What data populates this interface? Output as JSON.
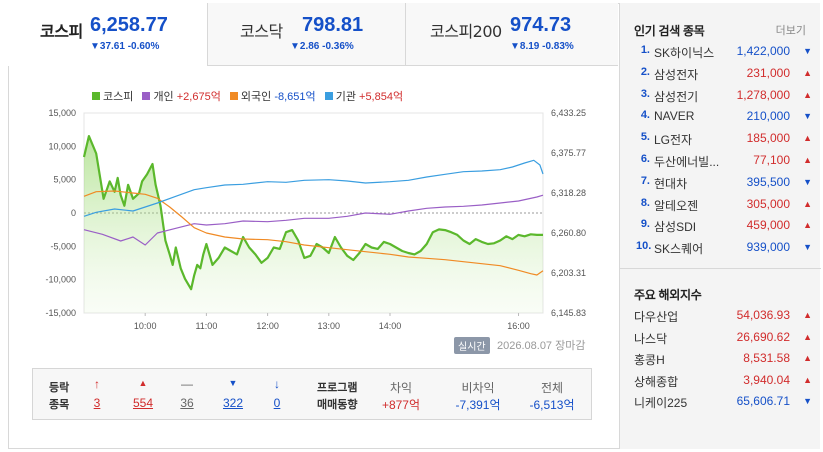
{
  "tabs": [
    {
      "name": "코스피",
      "value": "6,258.77",
      "change": "▼37.61 -0.60%"
    },
    {
      "name": "코스닥",
      "value": "798.81",
      "change": "▼2.86 -0.36%"
    },
    {
      "name": "코스피200",
      "value": "974.73",
      "change": "▼8.19 -0.83%"
    }
  ],
  "legend": {
    "kospi": {
      "label": "코스피",
      "color": "#5bb82c"
    },
    "individual": {
      "label": "개인",
      "value": "+2,675억",
      "color": "#9a5fc6",
      "value_color": "#d12c2c"
    },
    "foreign": {
      "label": "외국인",
      "value": "-8,651억",
      "color": "#f08a24",
      "value_color": "#1550c8"
    },
    "institution": {
      "label": "기관",
      "value": "+5,854억",
      "color": "#3a9ee0",
      "value_color": "#d12c2c"
    }
  },
  "chart_data": {
    "type": "line",
    "x_ticks": [
      "10:00",
      "11:00",
      "12:00",
      "13:00",
      "14:00",
      "16:00"
    ],
    "left_ticks": [
      "15,000",
      "10,000",
      "5,000",
      "0",
      "-5,000",
      "-10,000",
      "-15,000"
    ],
    "right_ticks": [
      "6,433.25",
      "6,375.77",
      "6,318.28",
      "6,260.80",
      "6,203.31",
      "6,145.83"
    ],
    "left_ylim": [
      -15000,
      15000
    ],
    "right_ylim": [
      6145.83,
      6433.25
    ],
    "x_range": [
      9,
      16.5
    ],
    "series": [
      {
        "name": "코스피",
        "axis": "right",
        "color": "#5bb82c",
        "fill": true,
        "x": [
          9.0,
          9.08,
          9.2,
          9.32,
          9.38,
          9.42,
          9.5,
          9.55,
          9.6,
          9.66,
          9.72,
          9.8,
          9.9,
          9.95,
          10.03,
          10.12,
          10.17,
          10.25,
          10.33,
          10.4,
          10.45,
          10.5,
          10.58,
          10.65,
          10.75,
          10.8,
          10.85,
          10.9,
          10.95,
          11.0,
          11.1,
          11.2,
          11.3,
          11.4,
          11.5,
          11.6,
          11.7,
          11.8,
          11.9,
          12.0,
          12.1,
          12.2,
          12.3,
          12.4,
          12.5,
          12.6,
          12.7,
          12.8,
          12.9,
          13.0,
          13.1,
          13.2,
          13.3,
          13.4,
          13.5,
          13.6,
          13.7,
          13.8,
          13.9,
          14.0,
          14.1,
          14.2,
          14.3,
          14.4,
          14.5,
          14.6,
          14.7,
          14.8,
          14.9,
          15.0,
          15.1,
          15.2,
          15.3,
          15.4,
          15.5,
          15.6,
          15.7,
          15.8,
          15.9,
          16.0,
          16.1,
          16.2,
          16.3,
          16.4,
          16.5
        ],
        "y": [
          6370,
          6400,
          6375,
          6310,
          6325,
          6335,
          6320,
          6340,
          6315,
          6300,
          6330,
          6310,
          6318,
          6335,
          6345,
          6360,
          6330,
          6300,
          6250,
          6230,
          6215,
          6240,
          6210,
          6195,
          6180,
          6200,
          6215,
          6210,
          6230,
          6245,
          6215,
          6225,
          6240,
          6235,
          6230,
          6255,
          6240,
          6230,
          6218,
          6225,
          6240,
          6238,
          6262,
          6265,
          6250,
          6225,
          6228,
          6245,
          6240,
          6232,
          6255,
          6240,
          6228,
          6222,
          6232,
          6245,
          6240,
          6238,
          6248,
          6245,
          6240,
          6235,
          6232,
          6230,
          6235,
          6245,
          6262,
          6266,
          6265,
          6262,
          6258,
          6250,
          6245,
          6252,
          6248,
          6245,
          6246,
          6250,
          6256,
          6252,
          6258,
          6256,
          6259,
          6258,
          6258
        ]
      },
      {
        "name": "개인",
        "axis": "left",
        "color": "#9a5fc6",
        "x": [
          9.0,
          9.3,
          9.6,
          9.8,
          10.0,
          10.2,
          10.5,
          10.8,
          11.0,
          11.3,
          11.6,
          12.0,
          12.3,
          12.6,
          13.0,
          13.3,
          13.6,
          14.0,
          14.3,
          14.6,
          14.9,
          15.2,
          15.5,
          15.8,
          16.1,
          16.4,
          16.5
        ],
        "y": [
          -2500,
          -3200,
          -4200,
          -3600,
          -4800,
          -3000,
          -2300,
          -1600,
          -1800,
          -1600,
          -1200,
          -1300,
          -1100,
          -800,
          -800,
          -500,
          0,
          -200,
          300,
          700,
          900,
          1000,
          1200,
          1500,
          1800,
          2400,
          2675
        ]
      },
      {
        "name": "외국인",
        "axis": "left",
        "color": "#f08a24",
        "x": [
          9.0,
          9.2,
          9.5,
          9.8,
          10.0,
          10.2,
          10.4,
          10.6,
          10.8,
          11.0,
          11.3,
          11.6,
          12.0,
          12.3,
          12.6,
          13.0,
          13.3,
          13.6,
          14.0,
          14.3,
          14.6,
          14.9,
          15.2,
          15.5,
          15.8,
          16.1,
          16.3,
          16.4,
          16.5
        ],
        "y": [
          2500,
          3200,
          3300,
          3000,
          2800,
          2200,
          900,
          -600,
          -2200,
          -3000,
          -3600,
          -3900,
          -4000,
          -4300,
          -4800,
          -5200,
          -5500,
          -5800,
          -6200,
          -6600,
          -6800,
          -7000,
          -7300,
          -7600,
          -7900,
          -8600,
          -9100,
          -9300,
          -8651
        ]
      },
      {
        "name": "기관",
        "axis": "left",
        "color": "#3a9ee0",
        "x": [
          9.0,
          9.2,
          9.5,
          9.8,
          10.0,
          10.2,
          10.5,
          10.8,
          11.0,
          11.3,
          11.6,
          12.0,
          12.3,
          12.6,
          13.0,
          13.3,
          13.6,
          14.0,
          14.3,
          14.6,
          14.9,
          15.2,
          15.5,
          15.8,
          16.0,
          16.2,
          16.35,
          16.45,
          16.5
        ],
        "y": [
          -500,
          100,
          600,
          300,
          900,
          1500,
          2500,
          3500,
          3800,
          4200,
          4300,
          4700,
          4600,
          4900,
          5000,
          4800,
          4500,
          4700,
          4900,
          5400,
          5800,
          6200,
          6300,
          6500,
          6900,
          7500,
          7900,
          7200,
          5854
        ]
      }
    ],
    "zero_line": true
  },
  "chart_footer": {
    "realtime": "실시간",
    "date": "2026.08.07 장마감"
  },
  "bottom": {
    "label1": "등락",
    "label2": "종목",
    "counts": [
      {
        "icon": "↑",
        "value": "3",
        "color": "#d12c2c"
      },
      {
        "icon": "▲",
        "value": "554",
        "color": "#d12c2c"
      },
      {
        "icon": "—",
        "value": "36",
        "color": "#666666"
      },
      {
        "icon": "▼",
        "value": "322",
        "color": "#1550c8"
      },
      {
        "icon": "↓",
        "value": "0",
        "color": "#1550c8"
      }
    ],
    "prog_label1": "프로그램",
    "prog_label2": "매매동향",
    "program": [
      {
        "head": "차익",
        "value": "+877억",
        "dir": "up"
      },
      {
        "head": "비차익",
        "value": "-7,391억",
        "dir": "down"
      },
      {
        "head": "전체",
        "value": "-6,513억",
        "dir": "down"
      }
    ]
  },
  "popular": {
    "title": "인기 검색 종목",
    "more": "더보기",
    "items": [
      {
        "rank": "1.",
        "name": "SK하이닉스",
        "price": "1,422,000",
        "dir": "down"
      },
      {
        "rank": "2.",
        "name": "삼성전자",
        "price": "231,000",
        "dir": "up"
      },
      {
        "rank": "3.",
        "name": "삼성전기",
        "price": "1,278,000",
        "dir": "up"
      },
      {
        "rank": "4.",
        "name": "NAVER",
        "price": "210,000",
        "dir": "down"
      },
      {
        "rank": "5.",
        "name": "LG전자",
        "price": "185,000",
        "dir": "up"
      },
      {
        "rank": "6.",
        "name": "두산에너빌...",
        "price": "77,100",
        "dir": "up"
      },
      {
        "rank": "7.",
        "name": "현대차",
        "price": "395,500",
        "dir": "down"
      },
      {
        "rank": "8.",
        "name": "알테오젠",
        "price": "305,000",
        "dir": "up"
      },
      {
        "rank": "9.",
        "name": "삼성SDI",
        "price": "459,000",
        "dir": "up"
      },
      {
        "rank": "10.",
        "name": "SK스퀘어",
        "price": "939,000",
        "dir": "down"
      }
    ]
  },
  "world": {
    "title": "주요 해외지수",
    "items": [
      {
        "name": "다우산업",
        "value": "54,036.93",
        "dir": "up"
      },
      {
        "name": "나스닥",
        "value": "26,690.62",
        "dir": "up"
      },
      {
        "name": "홍콩H",
        "value": "8,531.58",
        "dir": "up"
      },
      {
        "name": "상해종합",
        "value": "3,940.04",
        "dir": "up"
      },
      {
        "name": "니케이225",
        "value": "65,606.71",
        "dir": "down"
      }
    ]
  },
  "colors": {
    "up": "#d12c2c",
    "down": "#1550c8",
    "tab_value": "#1550c8"
  }
}
